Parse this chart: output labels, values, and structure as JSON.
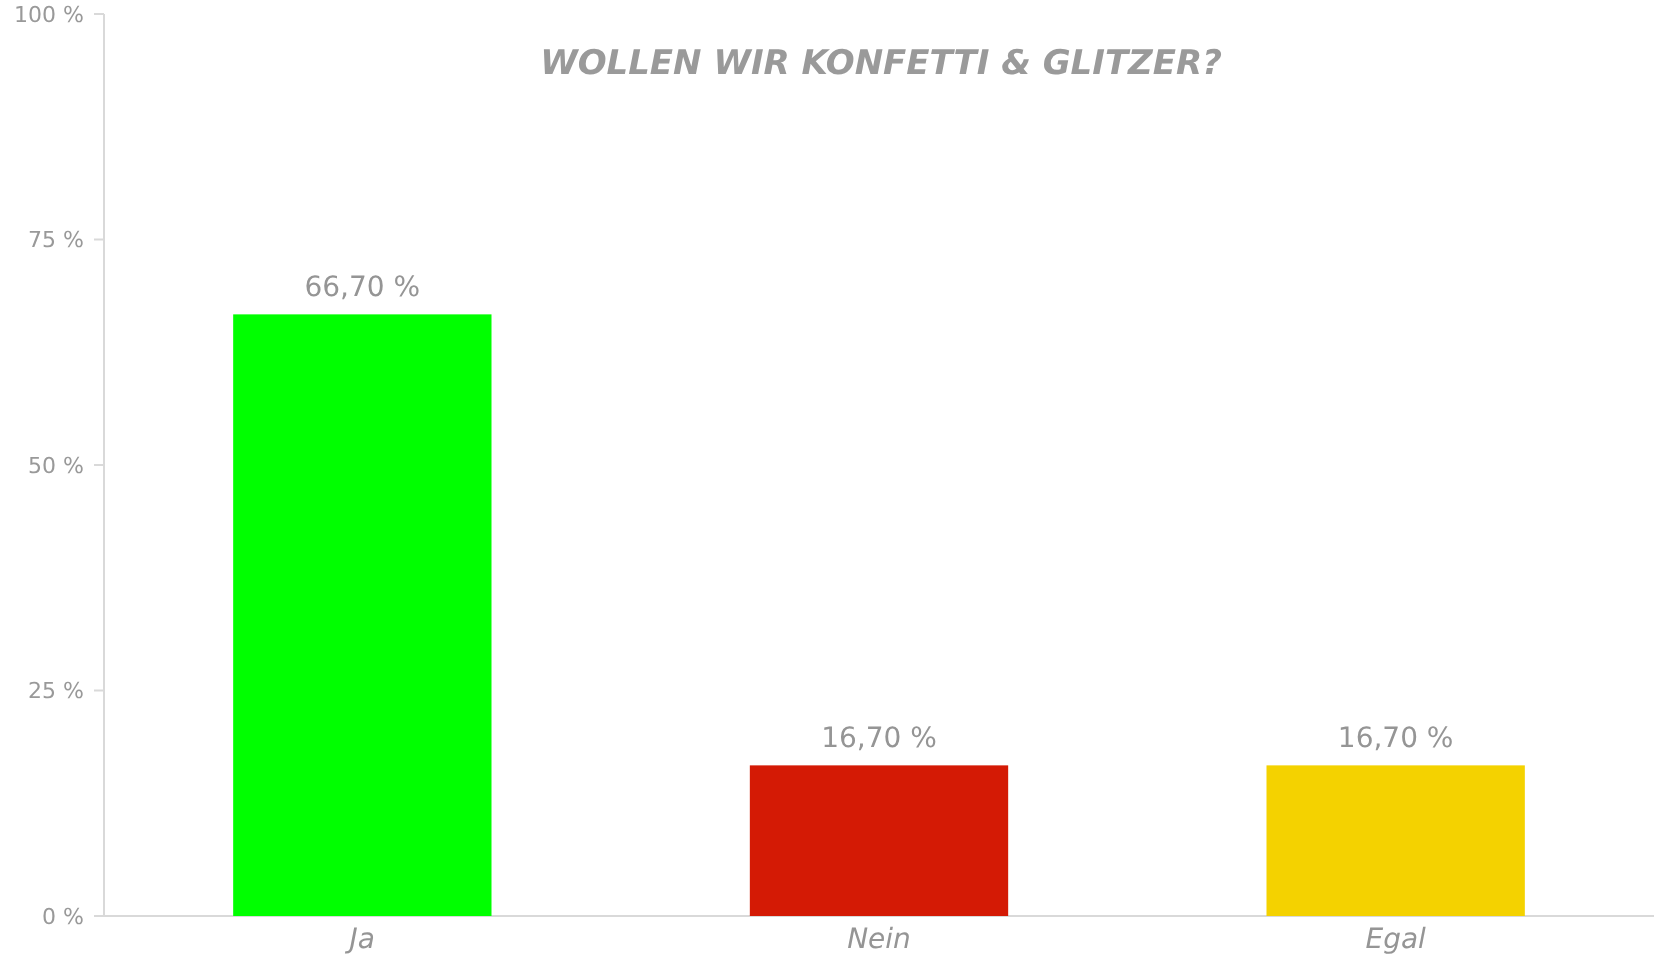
{
  "chart_data": {
    "type": "bar",
    "title": "WOLLEN WIR KONFETTI & GLITZER?",
    "categories": [
      "Ja",
      "Nein",
      "Egal"
    ],
    "values": [
      66.7,
      16.7,
      16.7
    ],
    "colors": [
      "#00ff00",
      "#d41a05",
      "#f4d200"
    ],
    "value_labels": [
      "66,70 %",
      "16,70 %",
      "16,70 %"
    ],
    "ylim": [
      0,
      100
    ],
    "yticks": [
      {
        "value": 0,
        "label": "0 %"
      },
      {
        "value": 25,
        "label": "25 %"
      },
      {
        "value": 50,
        "label": "50 %"
      },
      {
        "value": 75,
        "label": "75 %"
      },
      {
        "value": 100,
        "label": "100 %"
      }
    ],
    "grid": false
  }
}
